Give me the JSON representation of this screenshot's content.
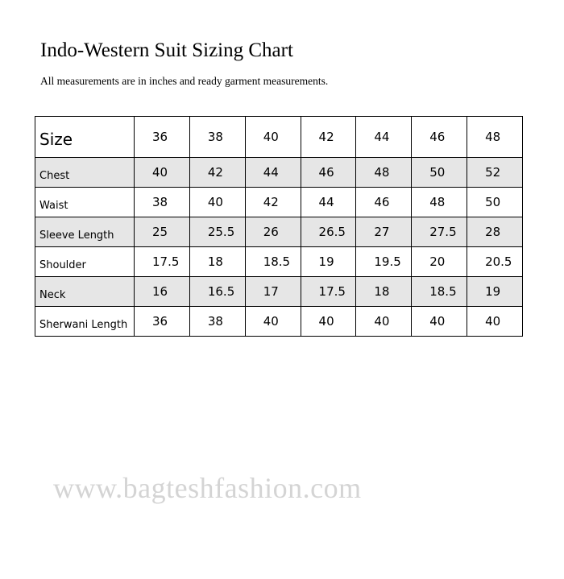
{
  "title": "Indo-Western Suit Sizing Chart",
  "subtitle": "All measurements are in inches and ready garment measurements.",
  "table": {
    "header": {
      "label": "Size",
      "values": [
        "36",
        "38",
        "40",
        "42",
        "44",
        "46",
        "48"
      ]
    },
    "rows": [
      {
        "label": "Chest",
        "values": [
          "40",
          "42",
          "44",
          "46",
          "48",
          "50",
          "52"
        ],
        "shaded": true
      },
      {
        "label": "Waist",
        "values": [
          "38",
          "40",
          "42",
          "44",
          "46",
          "48",
          "50"
        ],
        "shaded": false
      },
      {
        "label": "Sleeve Length",
        "values": [
          "25",
          "25.5",
          "26",
          "26.5",
          "27",
          "27.5",
          "28"
        ],
        "shaded": true
      },
      {
        "label": "Shoulder",
        "values": [
          "17.5",
          "18",
          "18.5",
          "19",
          "19.5",
          "20",
          "20.5"
        ],
        "shaded": false
      },
      {
        "label": "Neck",
        "values": [
          "16",
          "16.5",
          "17",
          "17.5",
          "18",
          "18.5",
          "19"
        ],
        "shaded": true
      },
      {
        "label": "Sherwani Length",
        "values": [
          "36",
          "38",
          "40",
          "40",
          "40",
          "40",
          "40"
        ],
        "shaded": false
      }
    ]
  },
  "watermark": "www.bagteshfashion.com",
  "colors": {
    "shaded_row": "#e6e6e6",
    "watermark": "#d4d4d4"
  }
}
